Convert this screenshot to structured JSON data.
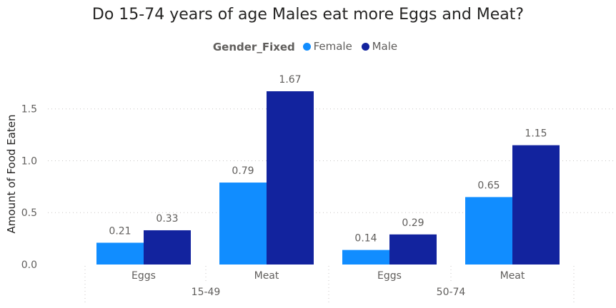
{
  "chart_data": {
    "type": "bar",
    "title": "Do 15-74 years of age Males eat more Eggs and Meat?",
    "legend_title": "Gender_Fixed",
    "legend_position": "top-center",
    "ylabel": "Amount of Food Eaten",
    "xlabel": "",
    "ylim": [
      0,
      1.75
    ],
    "yticks": [
      "0.0",
      "0.5",
      "1.0",
      "1.5"
    ],
    "grid": true,
    "groups": [
      {
        "label": "15-49",
        "categories": [
          "Eggs",
          "Meat"
        ]
      },
      {
        "label": "50-74",
        "categories": [
          "Eggs",
          "Meat"
        ]
      }
    ],
    "categories": [
      "Eggs",
      "Meat",
      "Eggs",
      "Meat"
    ],
    "series": [
      {
        "name": "Female",
        "color": "#118dff",
        "values": [
          0.21,
          0.79,
          0.14,
          0.65
        ],
        "labels": [
          "0.21",
          "0.79",
          "0.14",
          "0.65"
        ]
      },
      {
        "name": "Male",
        "color": "#12239e",
        "values": [
          0.33,
          1.67,
          0.29,
          1.15
        ],
        "labels": [
          "0.33",
          "1.67",
          "0.29",
          "1.15"
        ]
      }
    ]
  }
}
